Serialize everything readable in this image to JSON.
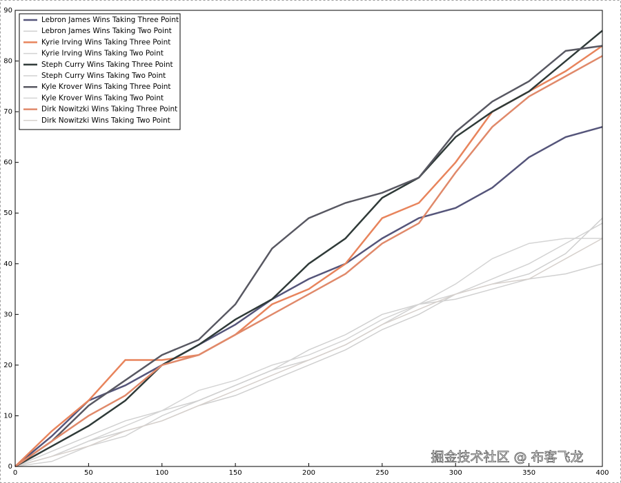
{
  "chart_data": {
    "type": "line",
    "x": [
      0,
      25,
      50,
      75,
      100,
      125,
      150,
      175,
      200,
      225,
      250,
      275,
      300,
      325,
      350,
      375,
      400
    ],
    "xlim": [
      0,
      400
    ],
    "ylim": [
      0,
      90
    ],
    "xticks": [
      0,
      50,
      100,
      150,
      200,
      250,
      300,
      350,
      400
    ],
    "yticks": [
      0,
      10,
      20,
      30,
      40,
      50,
      60,
      70,
      80,
      90
    ],
    "legend": "upper left",
    "watermark": "掘金技术社区 @ 布客飞龙",
    "series": [
      {
        "name": "Lebron James Wins Taking Three Point",
        "color": "#55557a",
        "width": 2.5,
        "values": [
          0,
          6,
          13,
          16,
          20,
          24,
          28,
          33,
          37,
          40,
          45,
          49,
          51,
          55,
          61,
          65,
          67
        ]
      },
      {
        "name": "Lebron James Wins Taking Two Point",
        "color": "#cfcfcf",
        "width": 1.5,
        "values": [
          0,
          2,
          5,
          7,
          9,
          12,
          14,
          17,
          20,
          23,
          27,
          30,
          34,
          36,
          38,
          42,
          49
        ]
      },
      {
        "name": "Kyrie Irving Wins Taking Three Point",
        "color": "#e8845c",
        "width": 2.5,
        "values": [
          0,
          7,
          13,
          21,
          21,
          22,
          26,
          32,
          35,
          40,
          49,
          52,
          60,
          70,
          74,
          78,
          83
        ]
      },
      {
        "name": "Kyrie Irving Wins Taking Two Point",
        "color": "#d2d2d2",
        "width": 1.5,
        "values": [
          0,
          1,
          4,
          6,
          10,
          13,
          16,
          19,
          21,
          24,
          28,
          32,
          34,
          37,
          40,
          44,
          48
        ]
      },
      {
        "name": "Steph Curry Wins Taking Three Point",
        "color": "#2f3a38",
        "width": 2.5,
        "values": [
          0,
          4,
          8,
          13,
          20,
          24,
          29,
          33,
          40,
          45,
          53,
          57,
          65,
          70,
          74,
          80,
          86
        ]
      },
      {
        "name": "Steph Curry Wins Taking Two Point",
        "color": "#d0d0d0",
        "width": 1.5,
        "values": [
          0,
          3,
          6,
          9,
          11,
          13,
          16,
          19,
          23,
          26,
          30,
          32,
          33,
          35,
          37,
          38,
          40
        ]
      },
      {
        "name": "Kyle Krover Wins Taking Three Point",
        "color": "#585862",
        "width": 2.5,
        "values": [
          0,
          5,
          12,
          17,
          22,
          25,
          32,
          43,
          49,
          52,
          54,
          57,
          66,
          72,
          76,
          82,
          83
        ]
      },
      {
        "name": "Kyle Krover Wins Taking Two Point",
        "color": "#d4d4d4",
        "width": 1.5,
        "values": [
          0,
          2,
          5,
          8,
          11,
          15,
          17,
          20,
          22,
          25,
          29,
          32,
          36,
          41,
          44,
          45,
          45
        ]
      },
      {
        "name": "Dirk Nowitzki Wins Taking Three Point",
        "color": "#e0896a",
        "width": 2.5,
        "values": [
          0,
          5,
          10,
          14,
          20,
          22,
          26,
          30,
          34,
          38,
          44,
          48,
          58,
          67,
          73,
          77,
          81
        ]
      },
      {
        "name": "Dirk Nowitzki Wins Taking Two Point",
        "color": "#d6d0cc",
        "width": 1.5,
        "values": [
          0,
          2,
          4,
          7,
          9,
          12,
          15,
          18,
          21,
          24,
          28,
          31,
          34,
          36,
          37,
          41,
          45
        ]
      }
    ]
  }
}
